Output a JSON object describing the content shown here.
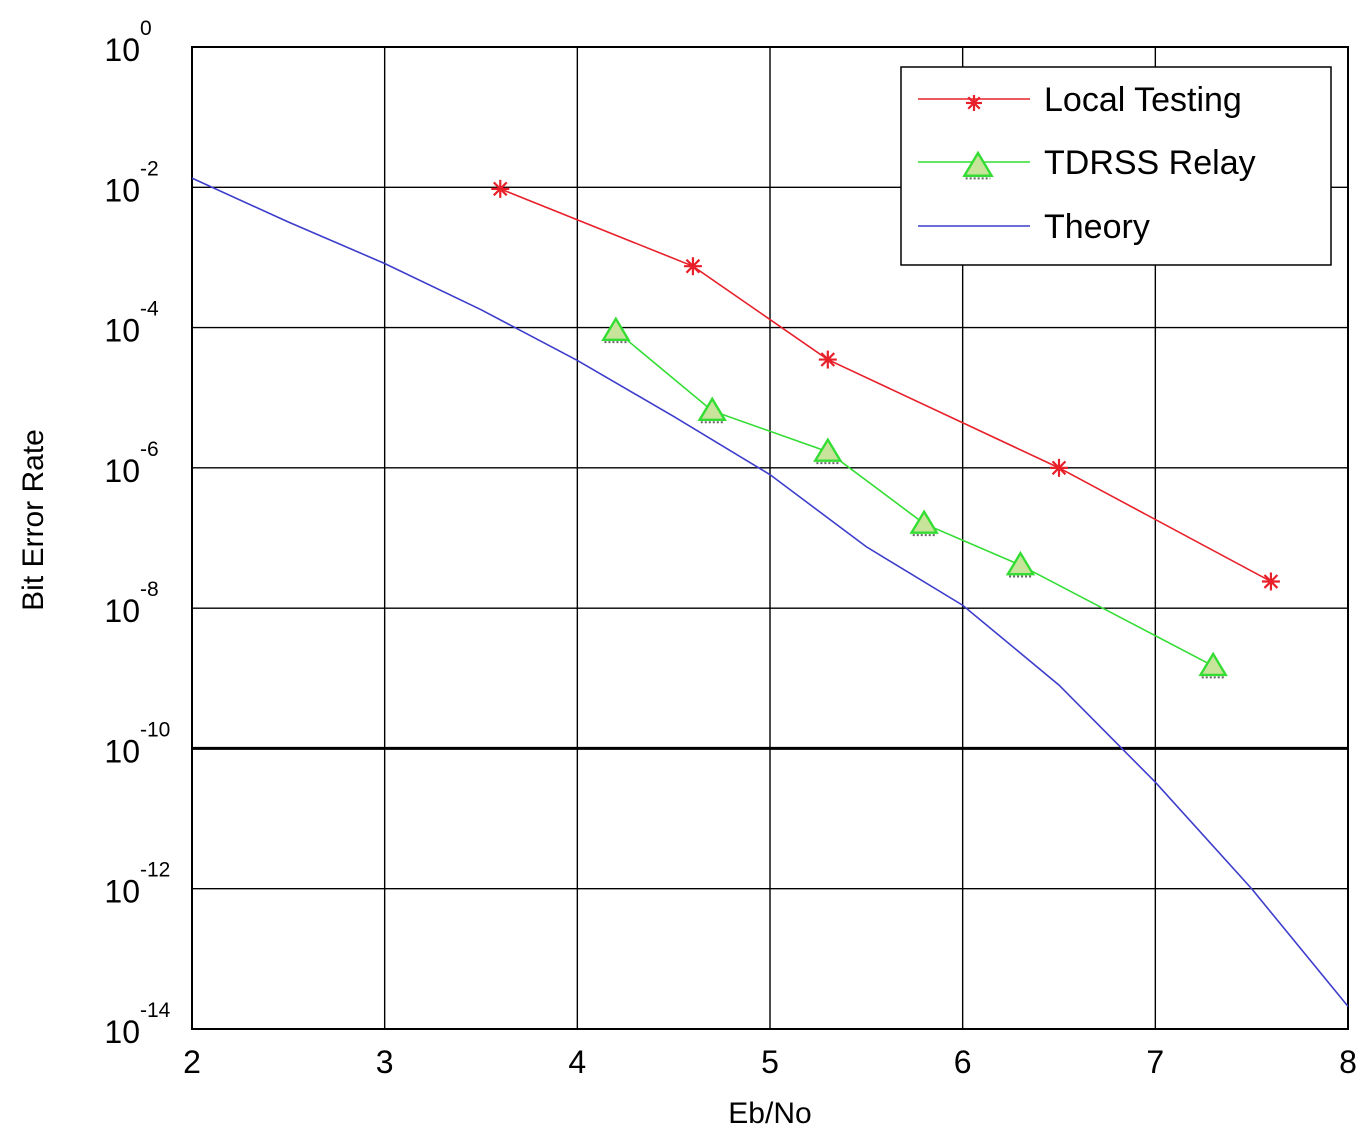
{
  "chart_data": {
    "type": "line",
    "title": "",
    "xlabel": "Eb/No",
    "ylabel": "Bit Error Rate",
    "x_scale": "linear",
    "y_scale": "log",
    "xlim": [
      2,
      8
    ],
    "ylim_exp": [
      -14,
      0
    ],
    "ylim": [
      1e-14,
      1
    ],
    "grid": true,
    "reference_line_y": 1e-10,
    "x_ticks": [
      "2",
      "3",
      "4",
      "5",
      "6",
      "7",
      "8"
    ],
    "y_ticks": [
      {
        "base": "10",
        "exp": "0"
      },
      {
        "base": "10",
        "exp": "-2"
      },
      {
        "base": "10",
        "exp": "-4"
      },
      {
        "base": "10",
        "exp": "-6"
      },
      {
        "base": "10",
        "exp": "-8"
      },
      {
        "base": "10",
        "exp": "-10"
      },
      {
        "base": "10",
        "exp": "-12"
      },
      {
        "base": "10",
        "exp": "-14"
      }
    ],
    "legend_position": "top-right",
    "series": [
      {
        "name": "Local Testing",
        "color": "#e8202a",
        "marker": "star",
        "points": [
          {
            "x": 3.6,
            "y": 0.0095
          },
          {
            "x": 4.6,
            "y": 0.00075
          },
          {
            "x": 5.3,
            "y": 3.5e-05
          },
          {
            "x": 6.5,
            "y": 1e-06
          },
          {
            "x": 7.6,
            "y": 2.4e-08
          }
        ]
      },
      {
        "name": "TDRSS Relay",
        "color": "#33dd33",
        "marker": "triangle",
        "marker_fill": "#c8e49a",
        "points": [
          {
            "x": 4.2,
            "y": 9e-05
          },
          {
            "x": 4.7,
            "y": 6.5e-06
          },
          {
            "x": 5.3,
            "y": 1.7e-06
          },
          {
            "x": 5.8,
            "y": 1.6e-07
          },
          {
            "x": 6.3,
            "y": 4.1e-08
          },
          {
            "x": 7.3,
            "y": 1.5e-09
          }
        ]
      },
      {
        "name": "Theory",
        "color": "#3d3dcc",
        "marker": "none",
        "points": [
          {
            "x": 2.0,
            "y": 0.0135
          },
          {
            "x": 2.5,
            "y": 0.0032
          },
          {
            "x": 3.0,
            "y": 0.00082
          },
          {
            "x": 3.5,
            "y": 0.00018
          },
          {
            "x": 4.0,
            "y": 3.4e-05
          },
          {
            "x": 4.5,
            "y": 5.4e-06
          },
          {
            "x": 5.0,
            "y": 8e-07
          },
          {
            "x": 5.5,
            "y": 7.5e-08
          },
          {
            "x": 6.0,
            "y": 1.1e-08
          },
          {
            "x": 6.5,
            "y": 8e-10
          },
          {
            "x": 7.0,
            "y": 3.3e-11
          },
          {
            "x": 7.5,
            "y": 1e-12
          },
          {
            "x": 8.0,
            "y": 2.1e-14
          }
        ]
      }
    ]
  }
}
